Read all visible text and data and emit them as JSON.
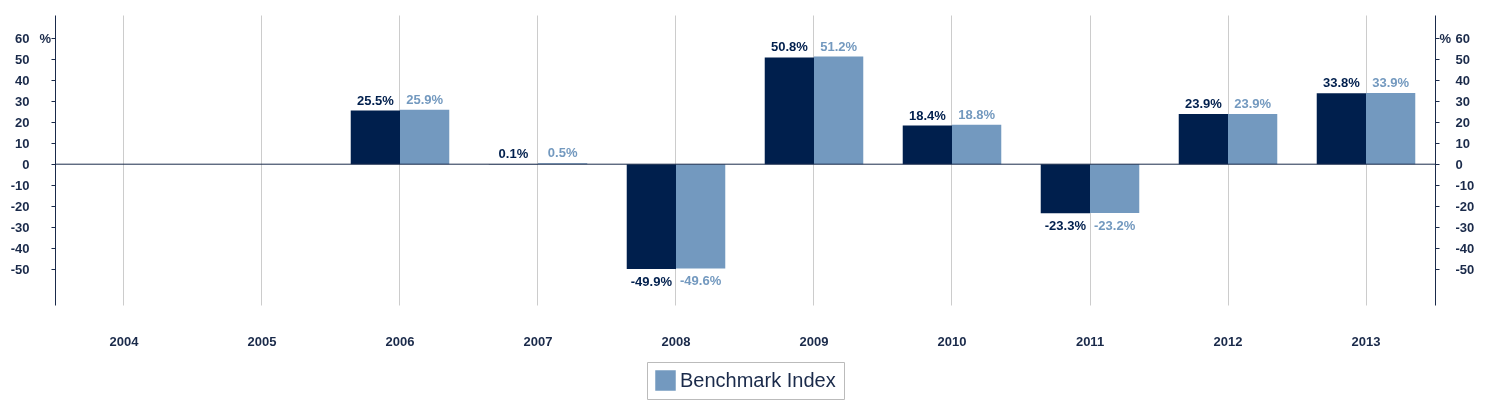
{
  "chart_data": {
    "type": "bar",
    "categories": [
      "2004",
      "2005",
      "2006",
      "2007",
      "2008",
      "2009",
      "2010",
      "2011",
      "2012",
      "2013"
    ],
    "series": [
      {
        "color": "#001f4d",
        "values": [
          null,
          null,
          25.5,
          0.1,
          -49.9,
          50.8,
          18.4,
          -23.3,
          23.9,
          33.8
        ],
        "value_labels": [
          null,
          null,
          "25.5%",
          "0.1%",
          "-49.9%",
          "50.8%",
          "18.4%",
          "-23.3%",
          "23.9%",
          "33.8%"
        ]
      },
      {
        "name": "Benchmark Index",
        "color": "#7399bf",
        "values": [
          null,
          null,
          25.9,
          0.5,
          -49.6,
          51.2,
          18.8,
          -23.2,
          23.9,
          33.9
        ],
        "value_labels": [
          null,
          null,
          "25.9%",
          "0.5%",
          "-49.6%",
          "51.2%",
          "18.8%",
          "-23.2%",
          "23.9%",
          "33.9%"
        ]
      }
    ],
    "ylabel": "%",
    "y2label": "%",
    "ylim": [
      -67,
      71
    ],
    "yticks": [
      -50,
      -40,
      -30,
      -20,
      -10,
      0,
      10,
      20,
      30,
      40,
      50,
      60
    ],
    "y2lim": [
      -67,
      71
    ],
    "y2ticks": [
      -50,
      -40,
      -30,
      -20,
      -10,
      0,
      10,
      20,
      30,
      40,
      50,
      60
    ],
    "ref_lines": [
      {
        "axis": "y",
        "value": 0,
        "color": "#1a2a4a"
      }
    ],
    "grid": "x",
    "legend": "bottom"
  }
}
